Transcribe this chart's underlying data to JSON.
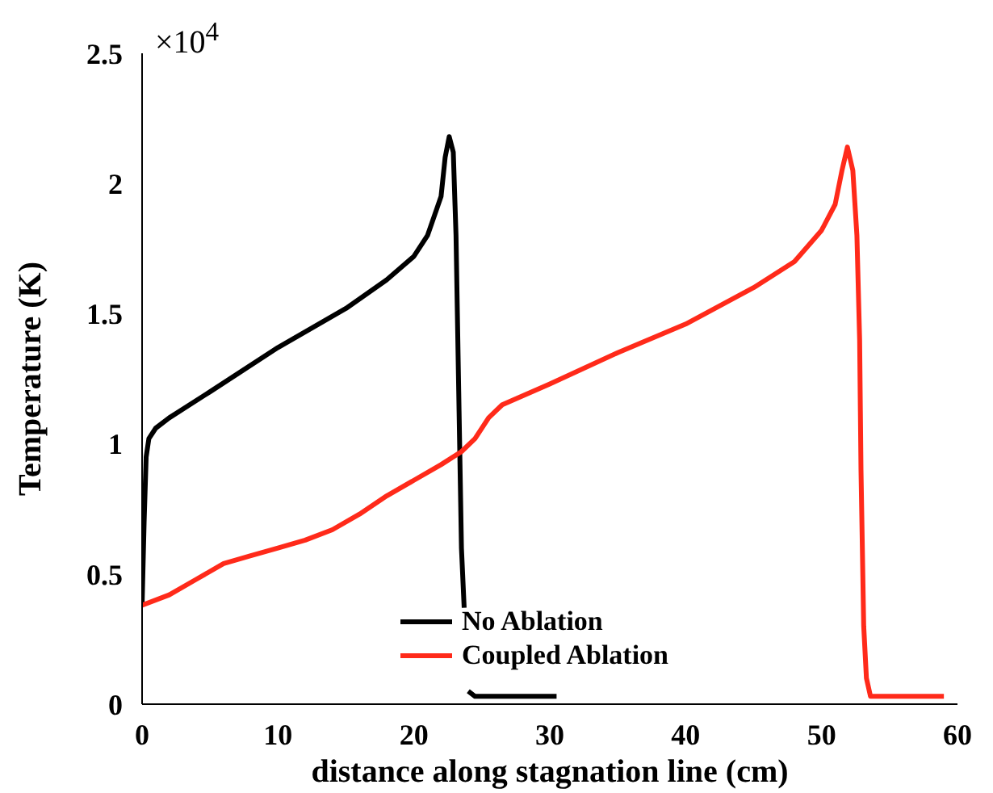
{
  "chart_data": {
    "type": "line",
    "xlabel": "distance along stagnation line (cm)",
    "ylabel": "Temperature (K)",
    "annotations": [
      "×10$^{4}$"
    ],
    "xlim": [
      0,
      60
    ],
    "xticks": [
      0,
      10,
      20,
      30,
      40,
      50,
      60
    ],
    "ylim": [
      0,
      2.5
    ],
    "yticks": [
      0,
      0.5,
      1,
      1.5,
      2,
      2.5
    ],
    "grid": false,
    "legend": "bottom",
    "marker": "none",
    "line_style": "solid",
    "series": [
      {
        "name": "No Ablation",
        "color": "#000000",
        "x": [
          0,
          0.15,
          0.3,
          0.5,
          1,
          2,
          5,
          10,
          15,
          18,
          20,
          21,
          22,
          22.3,
          22.6,
          22.9,
          23.1,
          23.3,
          23.5,
          23.7,
          23.8,
          24,
          24.5,
          27,
          30.5
        ],
        "values": [
          0.38,
          0.7,
          0.95,
          1.02,
          1.06,
          1.1,
          1.2,
          1.37,
          1.52,
          1.63,
          1.72,
          1.8,
          1.95,
          2.1,
          2.18,
          2.12,
          1.8,
          1.2,
          0.6,
          0.37,
          null,
          0.05,
          0.03,
          0.03,
          0.03
        ]
      },
      {
        "name": "Coupled Ablation",
        "color": "#ff2a1a",
        "x": [
          0,
          2,
          4,
          6,
          8,
          10,
          12,
          14,
          16,
          18,
          20,
          22,
          23.5,
          24.5,
          25.5,
          26.5,
          30,
          35,
          40,
          45,
          48,
          50,
          51,
          51.5,
          51.9,
          52.3,
          52.6,
          52.8,
          52.9,
          53.1,
          53.3,
          53.6,
          59
        ],
        "values": [
          0.38,
          0.42,
          0.48,
          0.54,
          0.57,
          0.6,
          0.63,
          0.67,
          0.73,
          0.8,
          0.86,
          0.92,
          0.97,
          1.02,
          1.1,
          1.15,
          1.23,
          1.35,
          1.46,
          1.6,
          1.7,
          1.82,
          1.92,
          2.05,
          2.14,
          2.05,
          1.8,
          1.4,
          0.9,
          0.3,
          0.1,
          0.03,
          0.03
        ]
      }
    ]
  }
}
